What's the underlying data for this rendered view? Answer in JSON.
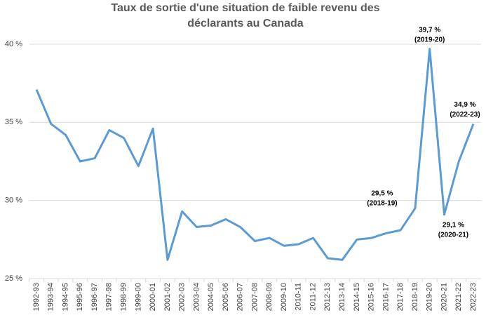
{
  "chart_data": {
    "type": "line",
    "title": [
      "Taux de sortie d'une situation de faible revenu des",
      "déclarants au Canada"
    ],
    "categories": [
      "1992-93",
      "1993-94",
      "1994-95",
      "1995-96",
      "1996-97",
      "1997-98",
      "1998-99",
      "1999-00",
      "2000-01",
      "2001-02",
      "2002-03",
      "2003-04",
      "2004-05",
      "2005-06",
      "2006-07",
      "2007-08",
      "2008-09",
      "2009-10",
      "2010-11",
      "2011-12",
      "2012-13",
      "2013-14",
      "2014-15",
      "2015-16",
      "2016-17",
      "2017-18",
      "2018-19",
      "2019-20",
      "2020-21",
      "2021-22",
      "2022-23"
    ],
    "values": [
      37.1,
      34.9,
      34.2,
      32.5,
      32.7,
      34.5,
      34.0,
      32.2,
      34.6,
      26.2,
      29.3,
      28.3,
      28.4,
      28.8,
      28.3,
      27.4,
      27.6,
      27.1,
      27.2,
      27.6,
      26.3,
      26.2,
      27.5,
      27.6,
      27.9,
      28.1,
      29.5,
      39.7,
      29.1,
      32.5,
      34.9
    ],
    "value_labels": [
      null,
      null,
      null,
      null,
      null,
      null,
      null,
      null,
      null,
      null,
      null,
      null,
      null,
      null,
      null,
      null,
      null,
      null,
      null,
      null,
      null,
      null,
      null,
      null,
      null,
      null,
      "29,5 %",
      "39,7 %",
      "29,1 %",
      null,
      "34,9 %"
    ],
    "value_sublabels": [
      null,
      null,
      null,
      null,
      null,
      null,
      null,
      null,
      null,
      null,
      null,
      null,
      null,
      null,
      null,
      null,
      null,
      null,
      null,
      null,
      null,
      null,
      null,
      null,
      null,
      null,
      "(2018-19)",
      "(2019-20)",
      "(2020-21)",
      null,
      "(2022-23)"
    ],
    "color": "#5b9bd5",
    "ylim": [
      25,
      40
    ],
    "yticks": [
      {
        "value": 25,
        "label": "25 %"
      },
      {
        "value": 30,
        "label": "30 %"
      },
      {
        "value": 35,
        "label": "35 %"
      },
      {
        "value": 40,
        "label": "40 %"
      }
    ],
    "grid": true
  }
}
